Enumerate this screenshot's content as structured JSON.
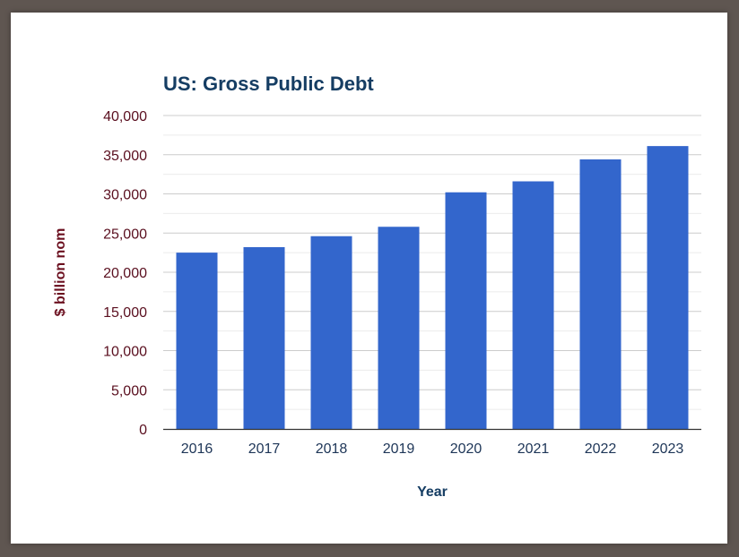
{
  "chart_data": {
    "type": "bar",
    "title": "US: Gross Public Debt",
    "categories": [
      "2016",
      "2017",
      "2018",
      "2019",
      "2020",
      "2021",
      "2022",
      "2023"
    ],
    "values": [
      22500,
      23200,
      24600,
      25800,
      30200,
      31600,
      34400,
      36100
    ],
    "xlabel": "Year",
    "ylabel": "$ billion nom",
    "ylim": [
      0,
      40000
    ],
    "yticks": [
      "0",
      "5,000",
      "10,000",
      "15,000",
      "20,000",
      "25,000",
      "30,000",
      "35,000",
      "40,000"
    ],
    "ytick_values": [
      0,
      5000,
      10000,
      15000,
      20000,
      25000,
      30000,
      35000,
      40000
    ],
    "minor_gridlines": true,
    "legend": "none"
  },
  "colors": {
    "bar": "#3366cc",
    "title": "#153d63",
    "ytick": "#5a0f1f",
    "xtick": "#1d3557",
    "ylabel": "#6b0f1f",
    "xlabel": "#153d63",
    "grid_major": "#cccccc",
    "grid_minor": "#ebebeb",
    "axis": "#333333"
  }
}
